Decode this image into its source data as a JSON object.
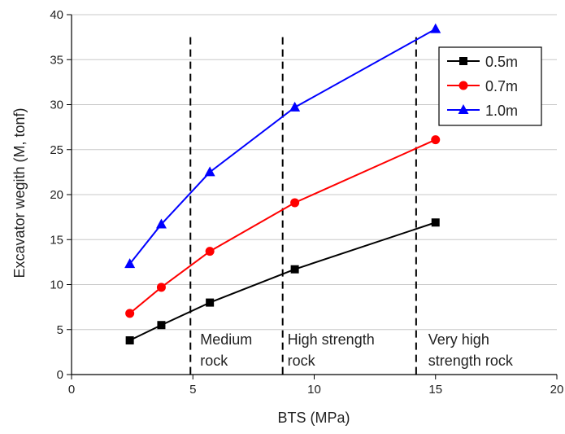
{
  "chart_data": {
    "type": "line",
    "xlabel": "BTS (MPa)",
    "ylabel": "Excavator wegith (M, tonf)",
    "xlim": [
      0,
      20
    ],
    "ylim": [
      0,
      40
    ],
    "xticks": [
      0,
      5,
      10,
      15,
      20
    ],
    "yticks": [
      0,
      5,
      10,
      15,
      20,
      25,
      30,
      35,
      40
    ],
    "grid": "horizontal",
    "legend": "top-right",
    "x": [
      2.4,
      3.7,
      5.7,
      9.2,
      15.0
    ],
    "series": [
      {
        "name": "0.5m",
        "color": "#000000",
        "marker": "square",
        "values": [
          3.8,
          5.5,
          8.0,
          11.7,
          16.9
        ]
      },
      {
        "name": "0.7m",
        "color": "#ff0000",
        "marker": "circle",
        "values": [
          6.8,
          9.7,
          13.7,
          19.1,
          26.1
        ]
      },
      {
        "name": "1.0m",
        "color": "#0000ff",
        "marker": "triangle",
        "values": [
          12.3,
          16.7,
          22.5,
          29.7,
          38.4
        ]
      }
    ],
    "boundaries": [
      {
        "x": 4.9,
        "ytop": 37.5
      },
      {
        "x": 8.7,
        "ytop": 37.5
      },
      {
        "x": 14.2,
        "ytop": 37.5
      }
    ],
    "regions": [
      {
        "x": 5.3,
        "lines": [
          "Medium",
          "rock"
        ]
      },
      {
        "x": 8.9,
        "lines": [
          "High strength",
          "rock"
        ]
      },
      {
        "x": 14.7,
        "lines": [
          "Very high",
          "strength rock"
        ]
      }
    ]
  }
}
